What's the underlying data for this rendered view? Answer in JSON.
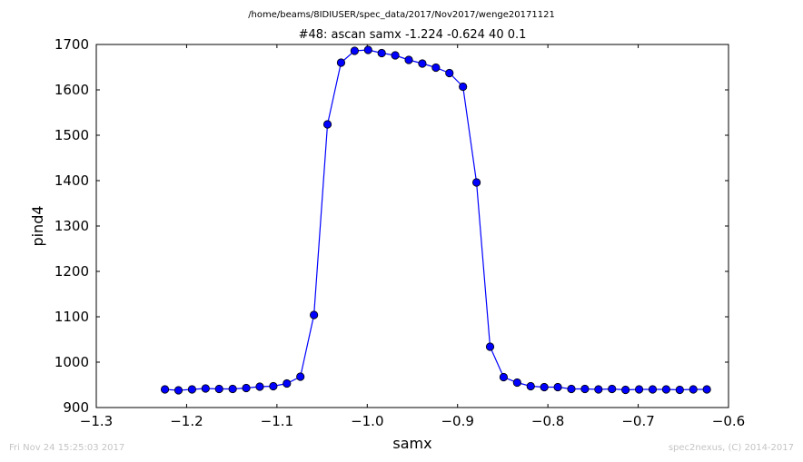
{
  "chart_data": {
    "type": "line",
    "suptitle": "/home/beams/8IDIUSER/spec_data/2017/Nov2017/wenge20171121",
    "title": "#48: ascan  samx -1.224 -0.624  40 0.1",
    "xlabel": "samx",
    "ylabel": "pind4",
    "xlim": [
      -1.3,
      -0.6
    ],
    "ylim": [
      900,
      1700
    ],
    "xticks": [
      "−1.3",
      "−1.2",
      "−1.1",
      "−1.0",
      "−0.9",
      "−0.8",
      "−0.7",
      "−0.6"
    ],
    "xtick_values": [
      -1.3,
      -1.2,
      -1.1,
      -1.0,
      -0.9,
      -0.8,
      -0.7,
      -0.6
    ],
    "yticks": [
      "900",
      "1000",
      "1100",
      "1200",
      "1300",
      "1400",
      "1500",
      "1600",
      "1700"
    ],
    "ytick_values": [
      900,
      1000,
      1100,
      1200,
      1300,
      1400,
      1500,
      1600,
      1700
    ],
    "grid": false,
    "color": "#0000ff",
    "series": [
      {
        "x": [
          -1.224,
          -1.209,
          -1.194,
          -1.179,
          -1.164,
          -1.149,
          -1.134,
          -1.119,
          -1.104,
          -1.089,
          -1.074,
          -1.059,
          -1.044,
          -1.029,
          -1.014,
          -0.999,
          -0.984,
          -0.969,
          -0.954,
          -0.939,
          -0.924,
          -0.909,
          -0.894,
          -0.879,
          -0.864,
          -0.849,
          -0.834,
          -0.819,
          -0.804,
          -0.789,
          -0.774,
          -0.759,
          -0.744,
          -0.729,
          -0.714,
          -0.699,
          -0.684,
          -0.669,
          -0.654,
          -0.639,
          -0.624
        ],
        "y": [
          940,
          938,
          940,
          942,
          941,
          941,
          943,
          946,
          947,
          953,
          968,
          1104,
          1524,
          1660,
          1686,
          1688,
          1681,
          1676,
          1666,
          1658,
          1649,
          1637,
          1607,
          1396,
          1034,
          967,
          955,
          947,
          945,
          945,
          941,
          941,
          940,
          941,
          939,
          940,
          940,
          940,
          939,
          940,
          940
        ]
      }
    ]
  },
  "footer": {
    "timestamp": "Fri Nov 24 15:25:03 2017",
    "credit": "spec2nexus, (C) 2014-2017"
  }
}
